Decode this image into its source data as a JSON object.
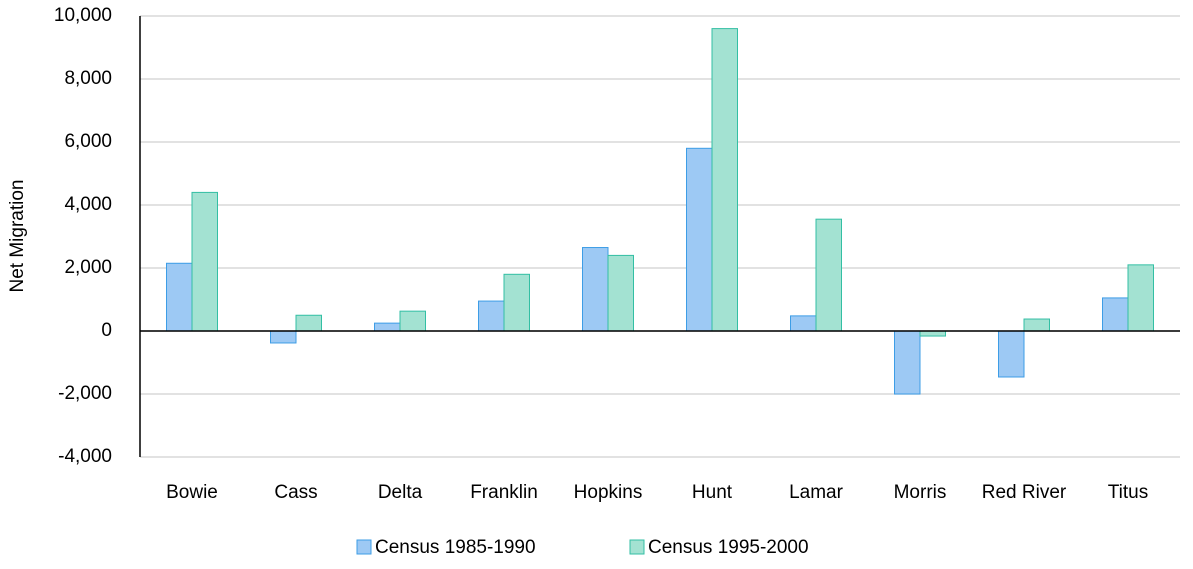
{
  "chart_data": {
    "type": "bar",
    "categories": [
      "Bowie",
      "Cass",
      "Delta",
      "Franklin",
      "Hopkins",
      "Hunt",
      "Lamar",
      "Morris",
      "Red River",
      "Titus"
    ],
    "series": [
      {
        "name": "Census 1985-1990",
        "color": "#9dc9f4",
        "stroke": "#3d9de6",
        "values": [
          2150,
          -380,
          250,
          950,
          2650,
          5800,
          480,
          -2000,
          -1460,
          1050
        ]
      },
      {
        "name": "Census 1995-2000",
        "color": "#a3e2d2",
        "stroke": "#33bfa4",
        "values": [
          4400,
          500,
          630,
          1800,
          2400,
          9600,
          3550,
          -160,
          380,
          2100
        ]
      }
    ],
    "y_label": "Net Migration",
    "ylim": [
      -4000,
      10000
    ],
    "yticks": [
      {
        "value": -4000,
        "label": "-4,000"
      },
      {
        "value": -2000,
        "label": "-2,000"
      },
      0,
      {
        "value": 2000,
        "label": "2,000"
      },
      {
        "value": 4000,
        "label": "4,000"
      },
      {
        "value": 6000,
        "label": "6,000"
      },
      {
        "value": 8000,
        "label": "8,000"
      },
      {
        "value": 10000,
        "label": "10,000"
      }
    ],
    "grid": true,
    "legend": "bottom"
  }
}
